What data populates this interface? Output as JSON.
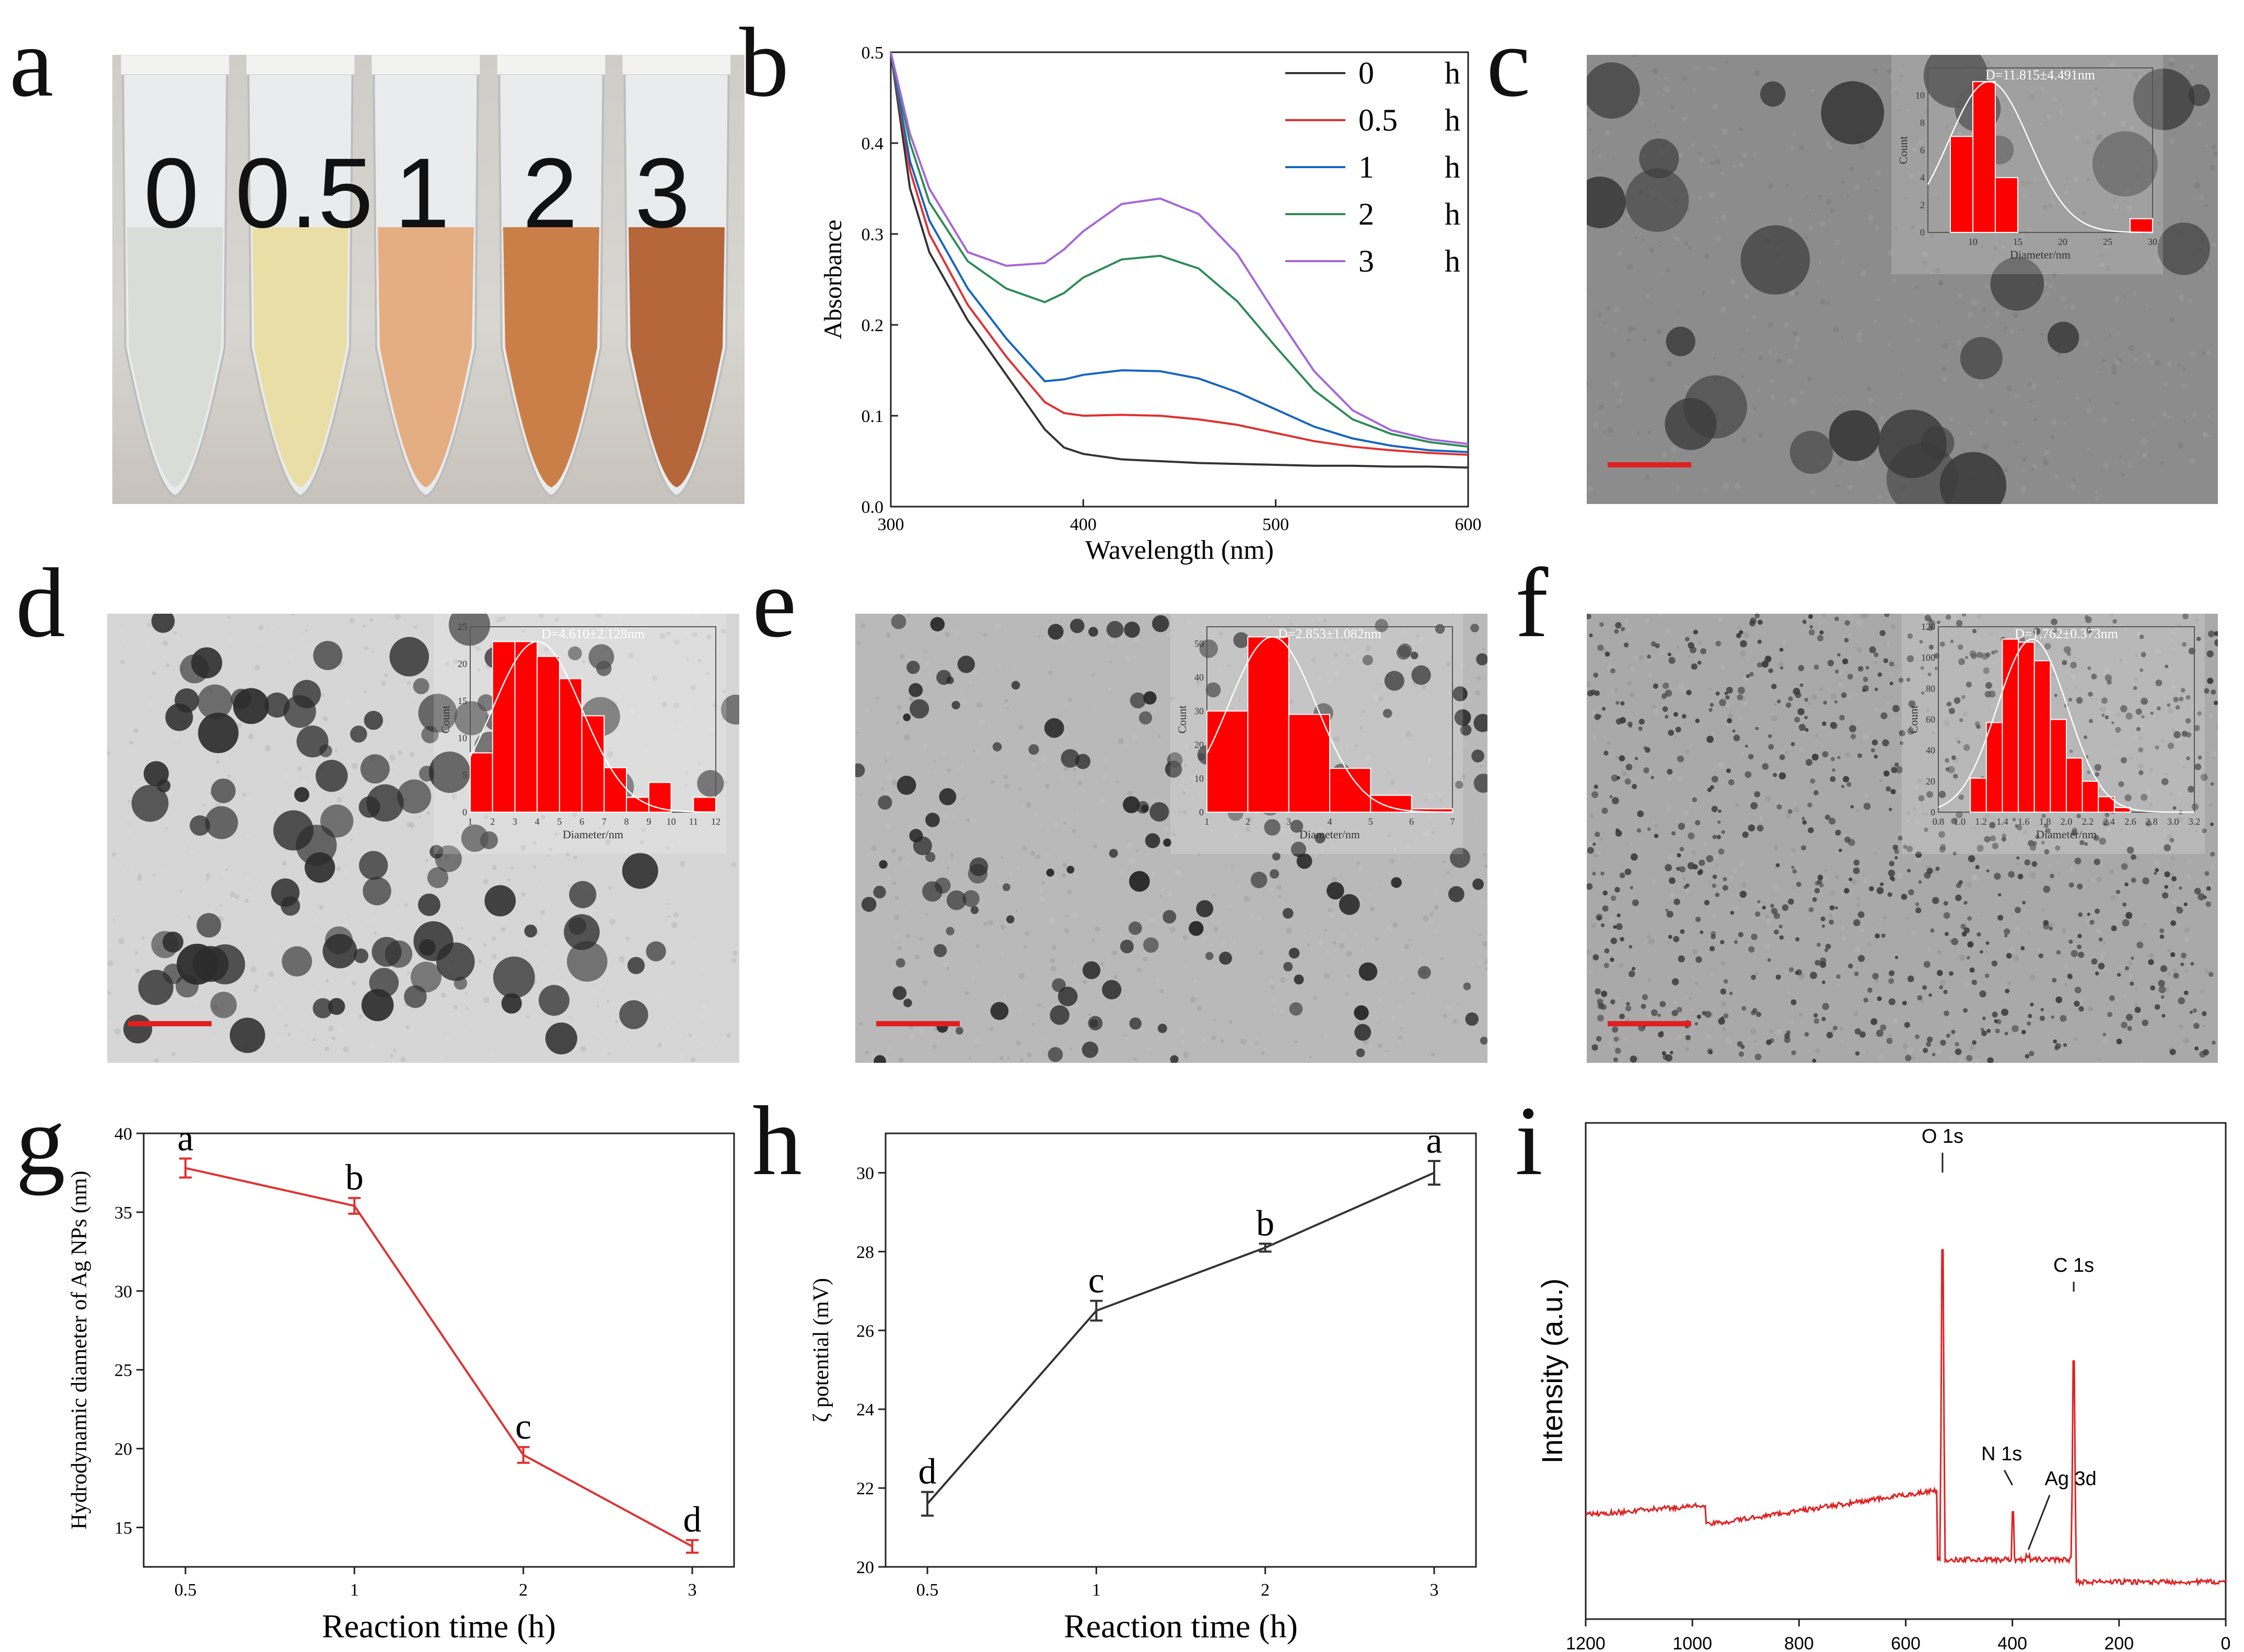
{
  "panel_letters": {
    "a": "a",
    "b": "b",
    "c": "c",
    "d": "d",
    "e": "e",
    "f": "f",
    "g": "g",
    "h": "h",
    "i": "i"
  },
  "colors": {
    "red": "#ff0000",
    "black": "#333333",
    "blue": "#1565c0",
    "green": "#2e8b57",
    "purple": "#a566d6",
    "line_red": "#e03030"
  },
  "tubes": {
    "labels": [
      "0",
      "0.5",
      "1",
      "2",
      "3"
    ],
    "liquid_colors": [
      "#d8dad6",
      "#e8dca0",
      "#e4a878",
      "#c8753a",
      "#b05a2a"
    ]
  },
  "chart_data": [
    {
      "id": "b",
      "type": "line",
      "xlabel": "Wavelength (nm)",
      "ylabel": "Absorbance",
      "xlim": [
        300,
        600
      ],
      "ylim": [
        0,
        0.5
      ],
      "xticks": [
        "300",
        "400",
        "500",
        "600"
      ],
      "yticks": [
        "0.0",
        "0.1",
        "0.2",
        "0.3",
        "0.4",
        "0.5"
      ],
      "legend_units": "h",
      "series": [
        {
          "name": "0",
          "color": "#333333",
          "x": [
            300,
            310,
            320,
            340,
            360,
            380,
            390,
            400,
            420,
            440,
            460,
            480,
            500,
            520,
            540,
            560,
            580,
            600
          ],
          "y": [
            0.5,
            0.35,
            0.28,
            0.205,
            0.145,
            0.085,
            0.065,
            0.058,
            0.052,
            0.05,
            0.048,
            0.047,
            0.046,
            0.045,
            0.045,
            0.044,
            0.044,
            0.043
          ]
        },
        {
          "name": "0.5",
          "color": "#e03030",
          "x": [
            300,
            310,
            320,
            340,
            360,
            380,
            390,
            400,
            420,
            440,
            460,
            480,
            500,
            520,
            540,
            560,
            580,
            600
          ],
          "y": [
            0.5,
            0.37,
            0.3,
            0.222,
            0.165,
            0.115,
            0.103,
            0.1,
            0.101,
            0.1,
            0.096,
            0.09,
            0.081,
            0.072,
            0.066,
            0.062,
            0.059,
            0.057
          ]
        },
        {
          "name": "1",
          "color": "#1565c0",
          "x": [
            300,
            310,
            320,
            340,
            360,
            380,
            390,
            400,
            420,
            440,
            460,
            480,
            500,
            520,
            540,
            560,
            580,
            600
          ],
          "y": [
            0.5,
            0.38,
            0.315,
            0.24,
            0.185,
            0.138,
            0.14,
            0.145,
            0.15,
            0.149,
            0.141,
            0.126,
            0.107,
            0.088,
            0.075,
            0.067,
            0.062,
            0.06
          ]
        },
        {
          "name": "2",
          "color": "#2e8b57",
          "x": [
            300,
            310,
            320,
            340,
            360,
            380,
            390,
            400,
            420,
            440,
            460,
            480,
            500,
            520,
            540,
            560,
            580,
            600
          ],
          "y": [
            0.5,
            0.4,
            0.335,
            0.27,
            0.24,
            0.225,
            0.235,
            0.252,
            0.272,
            0.276,
            0.262,
            0.226,
            0.176,
            0.128,
            0.096,
            0.08,
            0.071,
            0.066
          ]
        },
        {
          "name": "3",
          "color": "#a566d6",
          "x": [
            300,
            310,
            320,
            340,
            360,
            380,
            390,
            400,
            420,
            440,
            460,
            480,
            500,
            520,
            540,
            560,
            580,
            600
          ],
          "y": [
            0.5,
            0.41,
            0.35,
            0.28,
            0.265,
            0.268,
            0.283,
            0.303,
            0.333,
            0.339,
            0.322,
            0.278,
            0.212,
            0.149,
            0.106,
            0.084,
            0.074,
            0.069
          ]
        }
      ]
    },
    {
      "id": "c_inset",
      "type": "bar",
      "title": "D=11.815±4.491nm",
      "xlabel": "Diameter/nm",
      "ylabel": "Count",
      "xlim": [
        5,
        30
      ],
      "ylim": [
        0,
        12
      ],
      "xticks": [
        "10",
        "15",
        "20",
        "25",
        "30"
      ],
      "yticks": [
        "0",
        "2",
        "4",
        "6",
        "8",
        "10"
      ],
      "bins": [
        {
          "x0": 7.5,
          "x1": 10,
          "value": 7
        },
        {
          "x0": 10,
          "x1": 12.5,
          "value": 11
        },
        {
          "x0": 12.5,
          "x1": 15,
          "value": 4
        },
        {
          "x0": 27.5,
          "x1": 30,
          "value": 1
        }
      ],
      "fit_mu": 11.8,
      "fit_sigma": 4.49
    },
    {
      "id": "d_inset",
      "type": "bar",
      "title": "D=4.610±2.128nm",
      "xlabel": "Diameter/nm",
      "ylabel": "Count",
      "xlim": [
        1,
        12
      ],
      "ylim": [
        0,
        25
      ],
      "xticks": [
        "1",
        "2",
        "3",
        "4",
        "5",
        "6",
        "7",
        "8",
        "9",
        "10",
        "11",
        "12"
      ],
      "yticks": [
        "0",
        "5",
        "10",
        "15",
        "20",
        "25"
      ],
      "bins": [
        {
          "x0": 1,
          "x1": 2,
          "value": 8
        },
        {
          "x0": 2,
          "x1": 3,
          "value": 23
        },
        {
          "x0": 3,
          "x1": 4,
          "value": 23
        },
        {
          "x0": 4,
          "x1": 5,
          "value": 21
        },
        {
          "x0": 5,
          "x1": 6,
          "value": 18
        },
        {
          "x0": 6,
          "x1": 7,
          "value": 13
        },
        {
          "x0": 7,
          "x1": 8,
          "value": 6
        },
        {
          "x0": 8,
          "x1": 9,
          "value": 2
        },
        {
          "x0": 9,
          "x1": 10,
          "value": 4
        },
        {
          "x0": 11,
          "x1": 12,
          "value": 2
        }
      ],
      "fit_mu": 4.0,
      "fit_sigma": 2.0
    },
    {
      "id": "e_inset",
      "type": "bar",
      "title": "D=2.853±1.082nm",
      "xlabel": "Diameter/nm",
      "ylabel": "Count",
      "xlim": [
        1,
        7
      ],
      "ylim": [
        0,
        55
      ],
      "xticks": [
        "1",
        "2",
        "3",
        "4",
        "5",
        "6",
        "7"
      ],
      "yticks": [
        "0",
        "10",
        "20",
        "30",
        "40",
        "50"
      ],
      "bins": [
        {
          "x0": 1,
          "x1": 2,
          "value": 30
        },
        {
          "x0": 2,
          "x1": 3,
          "value": 52
        },
        {
          "x0": 3,
          "x1": 4,
          "value": 29
        },
        {
          "x0": 4,
          "x1": 5,
          "value": 13
        },
        {
          "x0": 5,
          "x1": 6,
          "value": 5
        },
        {
          "x0": 6,
          "x1": 7,
          "value": 1
        }
      ],
      "fit_mu": 2.6,
      "fit_sigma": 1.08
    },
    {
      "id": "f_inset",
      "type": "bar",
      "title": "D=1.762±0.373nm",
      "xlabel": "Diameter/nm",
      "ylabel": "Count",
      "xlim": [
        0.8,
        3.2
      ],
      "ylim": [
        0,
        120
      ],
      "xticks": [
        "0.8",
        "1.0",
        "1.2",
        "1.4",
        "1.6",
        "1.8",
        "2.0",
        "2.2",
        "2.4",
        "2.6",
        "2.8",
        "3.0",
        "3.2"
      ],
      "yticks": [
        "0",
        "20",
        "40",
        "60",
        "80",
        "100",
        "120"
      ],
      "bins": [
        {
          "x0": 1.1,
          "x1": 1.25,
          "value": 22
        },
        {
          "x0": 1.25,
          "x1": 1.4,
          "value": 58
        },
        {
          "x0": 1.4,
          "x1": 1.55,
          "value": 112
        },
        {
          "x0": 1.55,
          "x1": 1.7,
          "value": 110
        },
        {
          "x0": 1.7,
          "x1": 1.85,
          "value": 98
        },
        {
          "x0": 1.85,
          "x1": 2.0,
          "value": 60
        },
        {
          "x0": 2.0,
          "x1": 2.15,
          "value": 35
        },
        {
          "x0": 2.15,
          "x1": 2.3,
          "value": 20
        },
        {
          "x0": 2.3,
          "x1": 2.45,
          "value": 10
        },
        {
          "x0": 2.45,
          "x1": 2.6,
          "value": 3
        }
      ],
      "fit_mu": 1.68,
      "fit_sigma": 0.33
    },
    {
      "id": "g",
      "type": "line",
      "xlabel": "Reaction time (h)",
      "ylabel": "Hydrodynamic diameter of Ag NPs (nm)",
      "ylim": [
        12.5,
        40
      ],
      "categories": [
        "0.5",
        "1",
        "2",
        "3"
      ],
      "values": [
        37.8,
        35.4,
        19.6,
        13.8
      ],
      "errors": [
        0.6,
        0.5,
        0.5,
        0.4
      ],
      "letters": [
        "a",
        "b",
        "c",
        "d"
      ],
      "yticks": [
        "15",
        "20",
        "25",
        "30",
        "35",
        "40"
      ]
    },
    {
      "id": "h",
      "type": "line",
      "xlabel": "Reaction time (h)",
      "ylabel": "ζ potential (mV)",
      "ylim": [
        20,
        31
      ],
      "categories": [
        "0.5",
        "1",
        "2",
        "3"
      ],
      "values": [
        21.6,
        26.5,
        28.1,
        30.0
      ],
      "errors": [
        0.3,
        0.25,
        0.1,
        0.3
      ],
      "letters": [
        "d",
        "c",
        "b",
        "a"
      ],
      "yticks": [
        "20",
        "22",
        "24",
        "26",
        "28",
        "30"
      ]
    },
    {
      "id": "i",
      "type": "line",
      "xlabel": "Binding Energy (eV)",
      "ylabel": "Intensity (a.u.)",
      "xlim": [
        1200,
        0
      ],
      "xticks": [
        "1200",
        "1000",
        "800",
        "600",
        "400",
        "200",
        "0"
      ],
      "annotations": [
        "O 1s",
        "C 1s",
        "N 1s",
        "Ag 3d"
      ],
      "peaks": [
        {
          "be": 531,
          "height": 0.93
        },
        {
          "be": 285,
          "height": 0.65
        },
        {
          "be": 399,
          "height": 0.27
        },
        {
          "be": 374,
          "height": 0.13
        },
        {
          "be": 368,
          "height": 0.13
        },
        {
          "be": 978,
          "height": 0.07
        }
      ]
    }
  ]
}
